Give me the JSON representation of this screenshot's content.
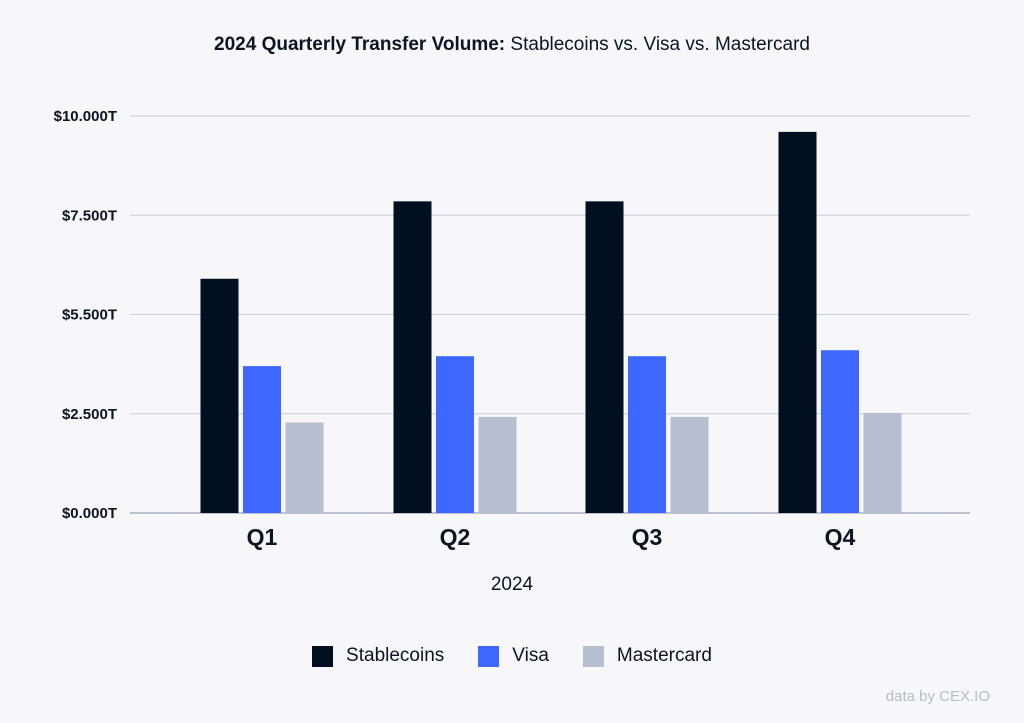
{
  "chart_data": {
    "type": "bar",
    "title_bold": "2024 Quarterly Transfer Volume:",
    "title_rest": "Stablecoins vs. Visa vs. Mastercard",
    "xlabel": "2024",
    "ylabel": "",
    "categories": [
      "Q1",
      "Q2",
      "Q3",
      "Q4"
    ],
    "yticks": [
      "$0.000T",
      "$2.500T",
      "$5.500T",
      "$7.500T",
      "$10.000T"
    ],
    "ylim": [
      0,
      10
    ],
    "grid": true,
    "legend_position": "bottom",
    "series": [
      {
        "name": "Stablecoins",
        "color": "#020f21",
        "values": [
          5.9,
          7.85,
          7.85,
          9.6
        ]
      },
      {
        "name": "Visa",
        "color": "#3d67ff",
        "values": [
          3.7,
          3.95,
          3.95,
          4.1
        ]
      },
      {
        "name": "Mastercard",
        "color": "#b5bfcf",
        "values": [
          2.28,
          2.42,
          2.42,
          2.52
        ]
      }
    ]
  },
  "credit": "data by CEX.IO"
}
